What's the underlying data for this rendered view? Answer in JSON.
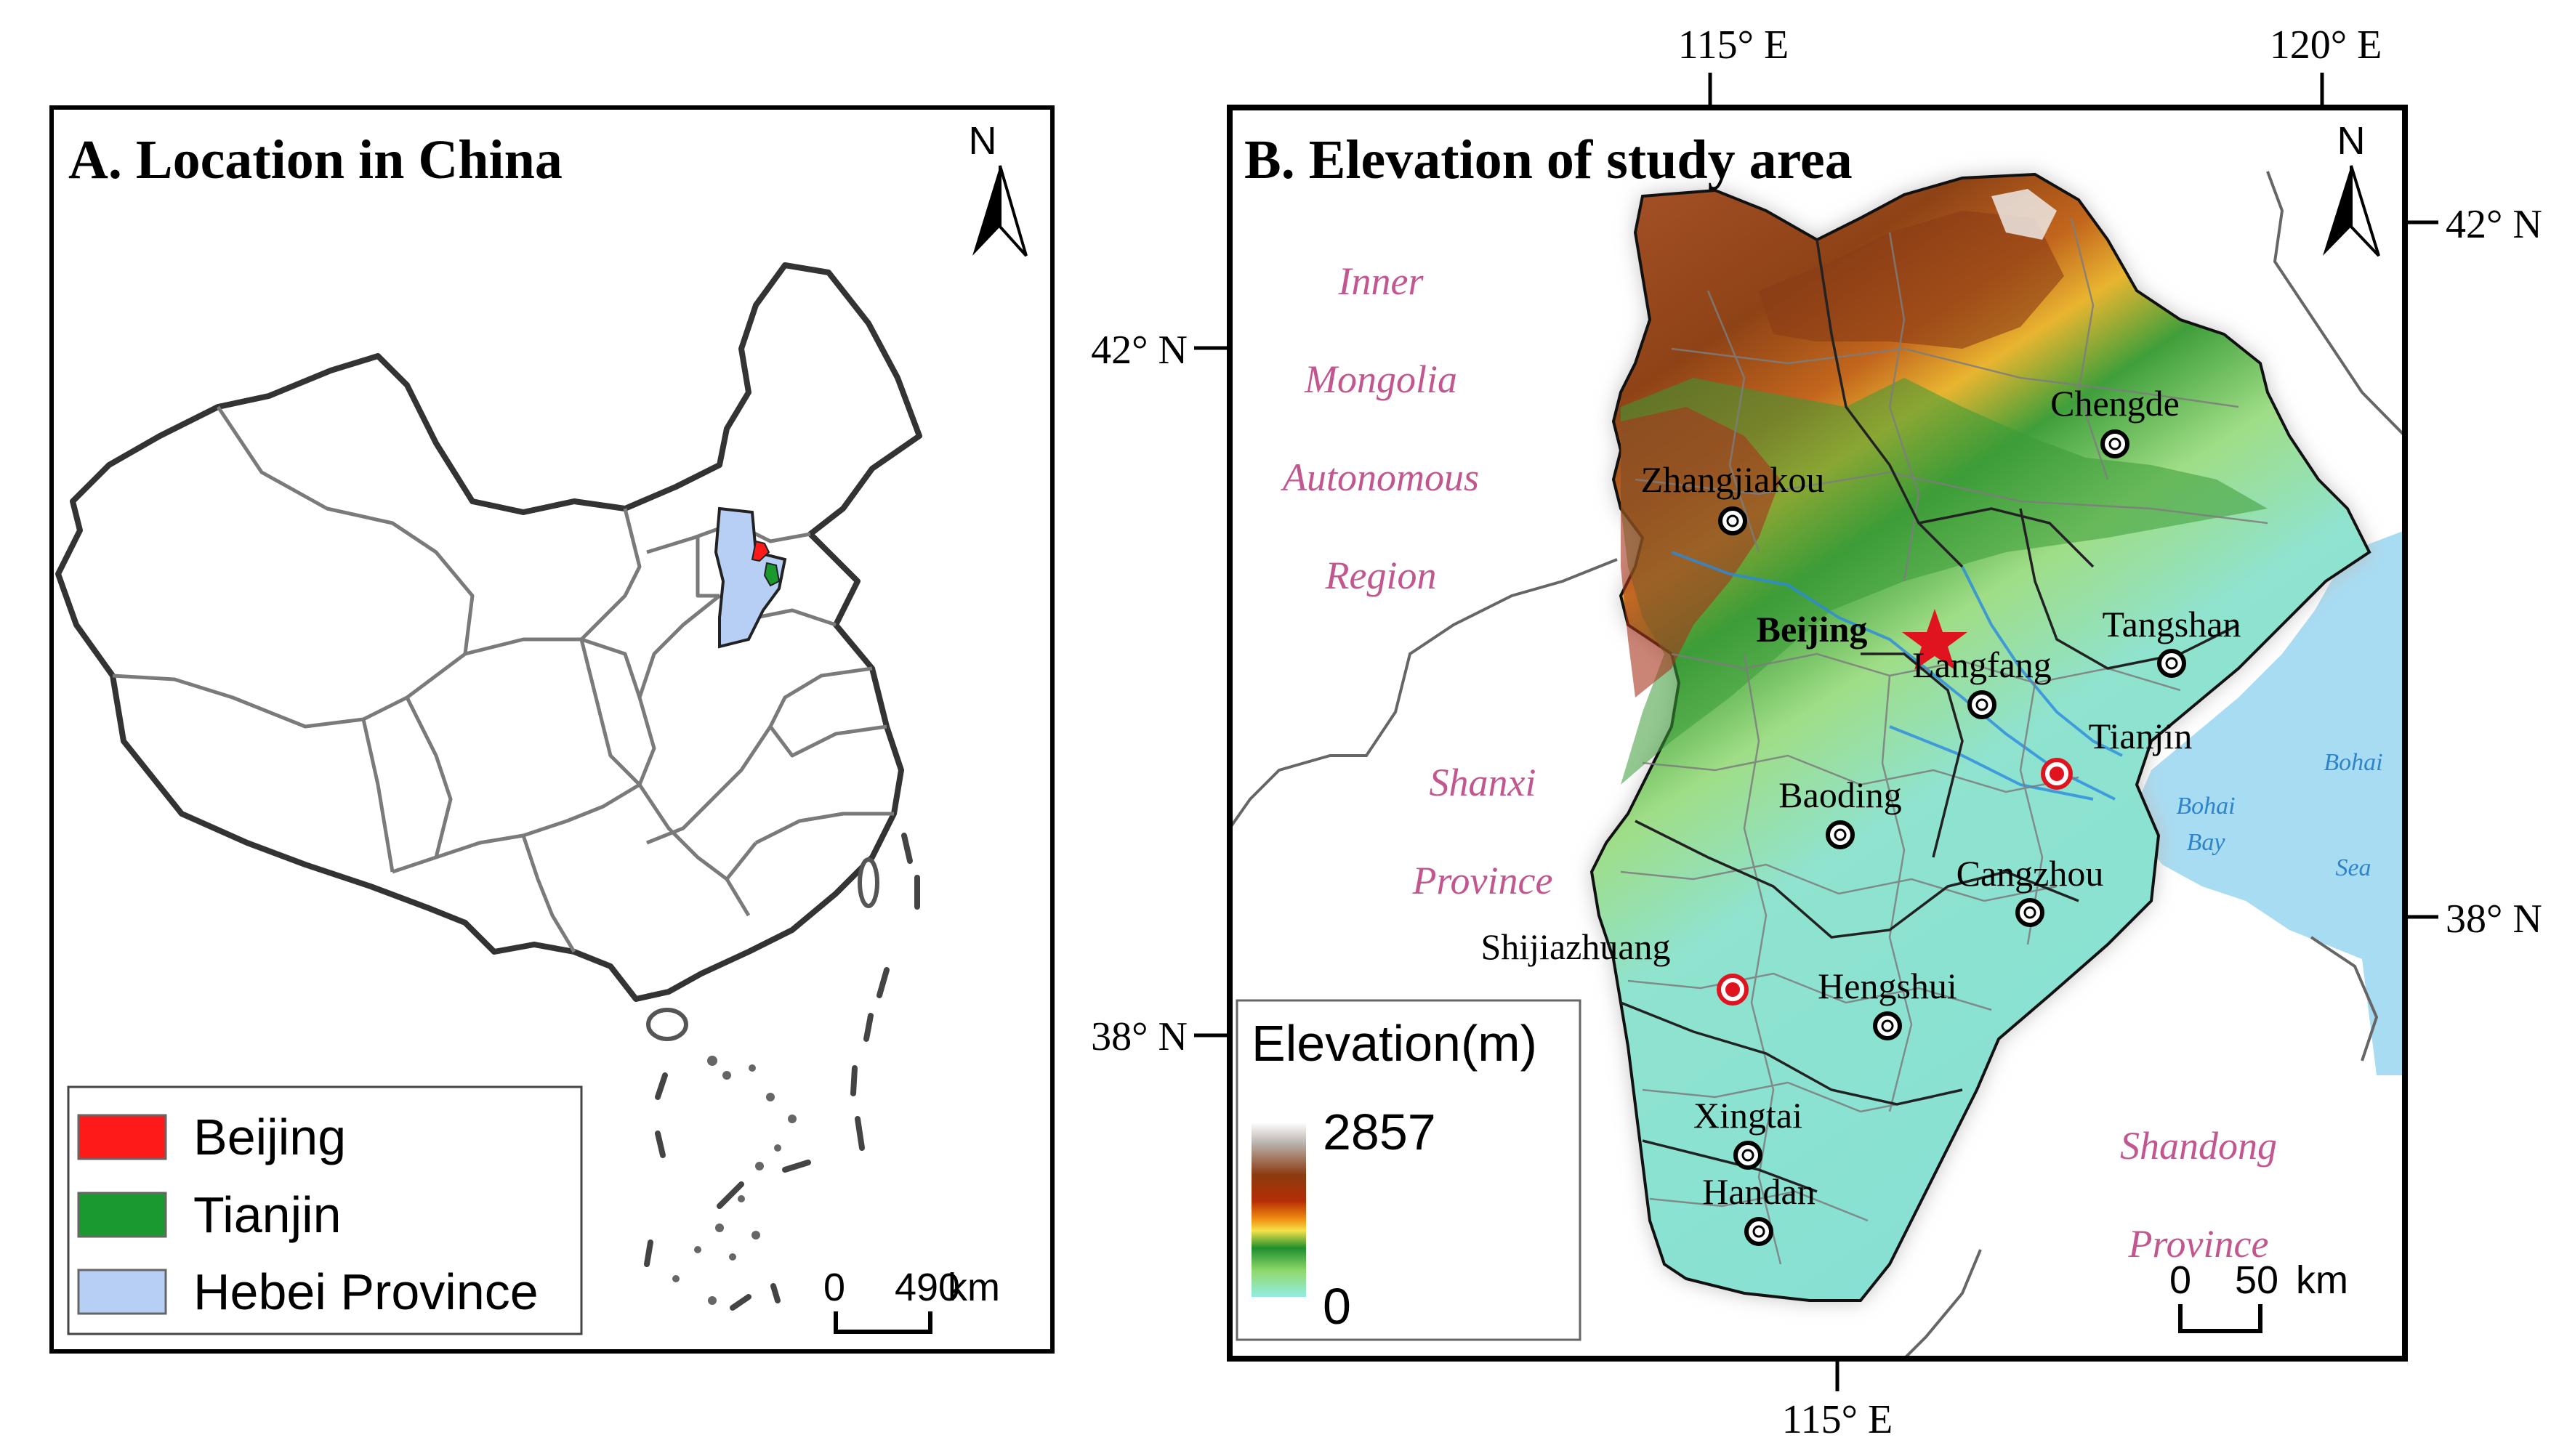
{
  "panel_a": {
    "title": "A. Location in China",
    "north_label": "N",
    "legend": [
      {
        "label": "Beijing",
        "color": "#ff1a1a"
      },
      {
        "label": "Tianjin",
        "color": "#1a9a2e"
      },
      {
        "label": "Hebei Province",
        "color": "#b7cff5"
      }
    ],
    "scale": {
      "start": "0",
      "end": "490",
      "unit": "km"
    }
  },
  "panel_b": {
    "title": "B. Elevation of study area",
    "north_label": "N",
    "top_lon_labels": [
      "115° E",
      "120° E"
    ],
    "bottom_lon_label": "115° E",
    "left_lat_labels": [
      "42° N",
      "38° N"
    ],
    "right_lat_labels": [
      "42° N",
      "38° N"
    ],
    "regions": {
      "inner_mongolia": [
        "Inner",
        "Mongolia",
        "Autonomous",
        "Region"
      ],
      "shanxi": [
        "Shanxi",
        "Province"
      ],
      "shandong": [
        "Shandong",
        "Province"
      ]
    },
    "seas": {
      "bohai_bay": [
        "Bohai",
        "Bay"
      ],
      "bohai_sea": [
        "Bohai",
        "Sea"
      ]
    },
    "cities": {
      "chengde": "Chengde",
      "zhangjiakou": "Zhangjiakou",
      "beijing": "Beijing",
      "tangshan": "Tangshan",
      "langfang": "Langfang",
      "tianjin": "Tianjin",
      "baoding": "Baoding",
      "cangzhou": "Cangzhou",
      "shijiazhuang": "Shijiazhuang",
      "hengshui": "Hengshui",
      "xingtai": "Xingtai",
      "handan": "Handan"
    },
    "elevation_legend": {
      "title": "Elevation(m)",
      "max": "2857",
      "min": "0"
    },
    "scale": {
      "start": "0",
      "end": "50",
      "unit": "km"
    }
  },
  "colors": {
    "accent_region_label": "#c2578f",
    "sea": "#a8dcf2",
    "hebei": "#b7cff5",
    "beijing": "#ff1a1a",
    "tianjin": "#1a9a2e",
    "capital_star": "#e0141e"
  }
}
